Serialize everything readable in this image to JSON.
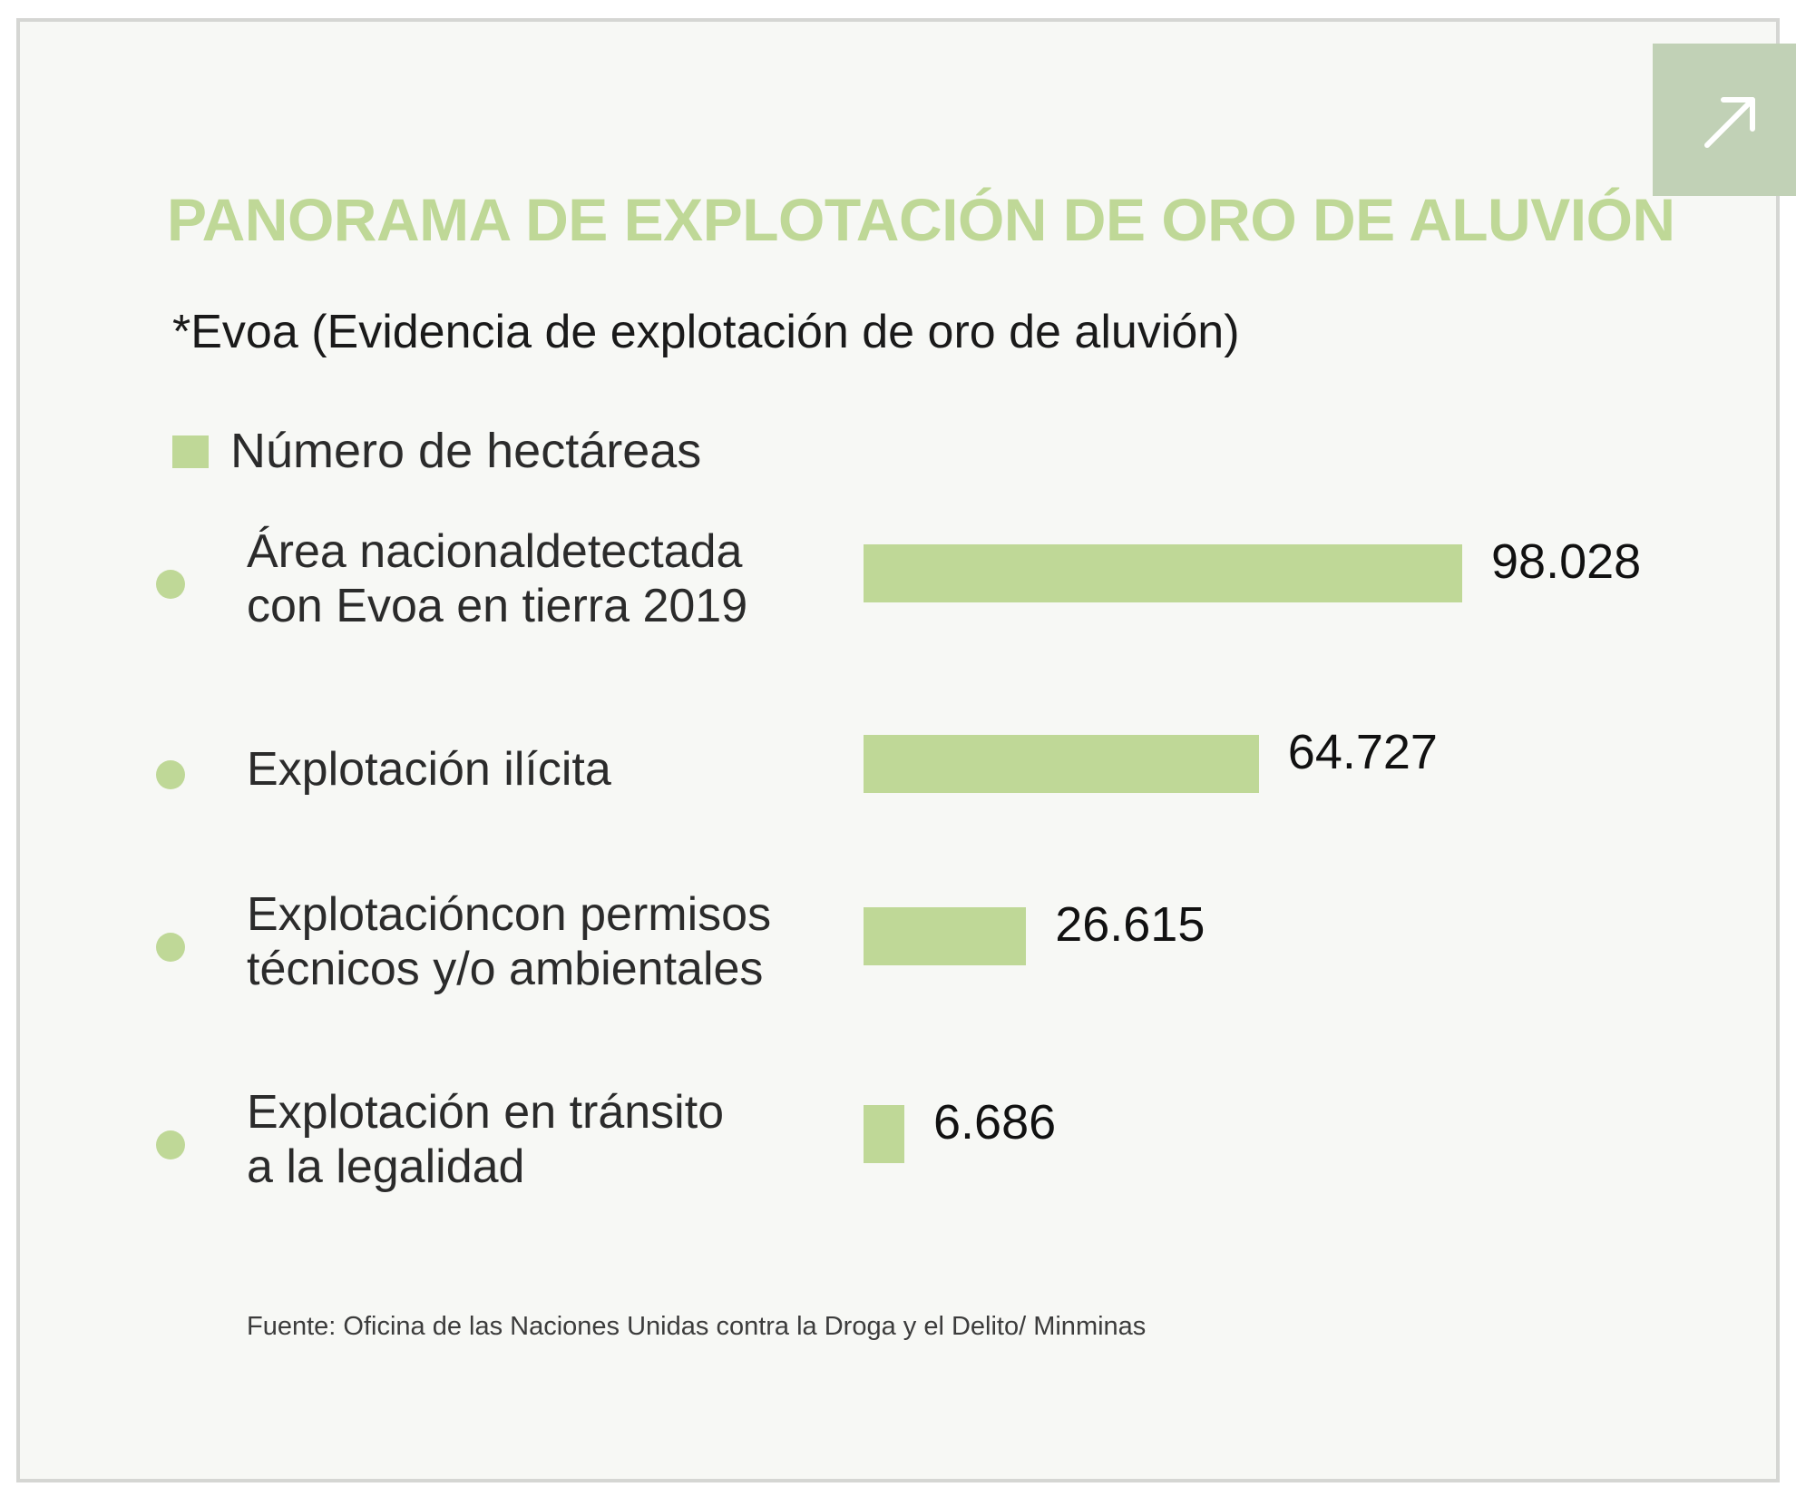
{
  "chart_data": {
    "type": "bar",
    "orientation": "horizontal",
    "title": "PANORAMA DE EXPLOTACIÓN DE ORO DE ALUVIÓN",
    "subtitle": "*Evoa (Evidencia de explotación de oro de aluvión)",
    "legend": [
      "Número de hectáreas"
    ],
    "categories": [
      [
        "Área nacionaldetectada",
        "con Evoa en tierra 2019"
      ],
      [
        "Explotación ilícita"
      ],
      [
        "Explotacióncon permisos",
        "técnicos y/o ambientales"
      ],
      [
        "Explotación en tránsito",
        "a la legalidad"
      ]
    ],
    "values": [
      98028,
      64727,
      26615,
      6686
    ],
    "value_labels": [
      "98.028",
      "64.727",
      "26.615",
      "6.686"
    ],
    "xlim": [
      0,
      98028
    ],
    "source": "Fuente: Oficina de las Naciones Unidas contra la Droga y el Delito/ Minminas"
  },
  "colors": {
    "accent": "#bfd897",
    "button": "#c1d1b6",
    "background": "#f7f8f5"
  },
  "expand_button": {
    "icon": "arrow-up-right-icon"
  }
}
